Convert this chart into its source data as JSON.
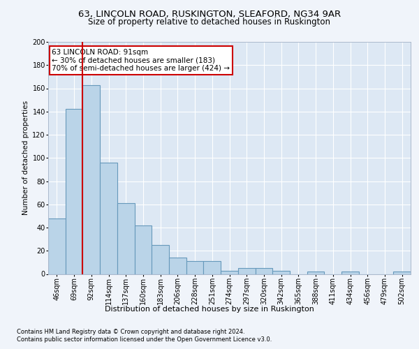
{
  "title1": "63, LINCOLN ROAD, RUSKINGTON, SLEAFORD, NG34 9AR",
  "title2": "Size of property relative to detached houses in Ruskington",
  "xlabel": "Distribution of detached houses by size in Ruskington",
  "ylabel": "Number of detached properties",
  "footnote1": "Contains HM Land Registry data © Crown copyright and database right 2024.",
  "footnote2": "Contains public sector information licensed under the Open Government Licence v3.0.",
  "annotation_line1": "63 LINCOLN ROAD: 91sqm",
  "annotation_line2": "← 30% of detached houses are smaller (183)",
  "annotation_line3": "70% of semi-detached houses are larger (424) →",
  "bar_labels": [
    "46sqm",
    "69sqm",
    "92sqm",
    "114sqm",
    "137sqm",
    "160sqm",
    "183sqm",
    "206sqm",
    "228sqm",
    "251sqm",
    "274sqm",
    "297sqm",
    "320sqm",
    "342sqm",
    "365sqm",
    "388sqm",
    "411sqm",
    "434sqm",
    "456sqm",
    "479sqm",
    "502sqm"
  ],
  "bar_values": [
    48,
    142,
    163,
    96,
    61,
    42,
    25,
    14,
    11,
    11,
    3,
    5,
    5,
    3,
    0,
    2,
    0,
    2,
    0,
    0,
    2
  ],
  "bar_color": "#bad4e8",
  "bar_edge_color": "#6699bb",
  "vline_color": "#cc0000",
  "vline_x_index": 2,
  "box_color": "#cc0000",
  "ylim": [
    0,
    200
  ],
  "yticks": [
    0,
    20,
    40,
    60,
    80,
    100,
    120,
    140,
    160,
    180,
    200
  ],
  "bg_color": "#dde8f4",
  "fig_bg_color": "#f0f4fa",
  "grid_color": "#ffffff",
  "title1_fontsize": 9.5,
  "title2_fontsize": 8.5,
  "xlabel_fontsize": 8.0,
  "ylabel_fontsize": 7.5,
  "tick_fontsize": 7.0,
  "footnote_fontsize": 6.0,
  "annotation_fontsize": 7.5
}
